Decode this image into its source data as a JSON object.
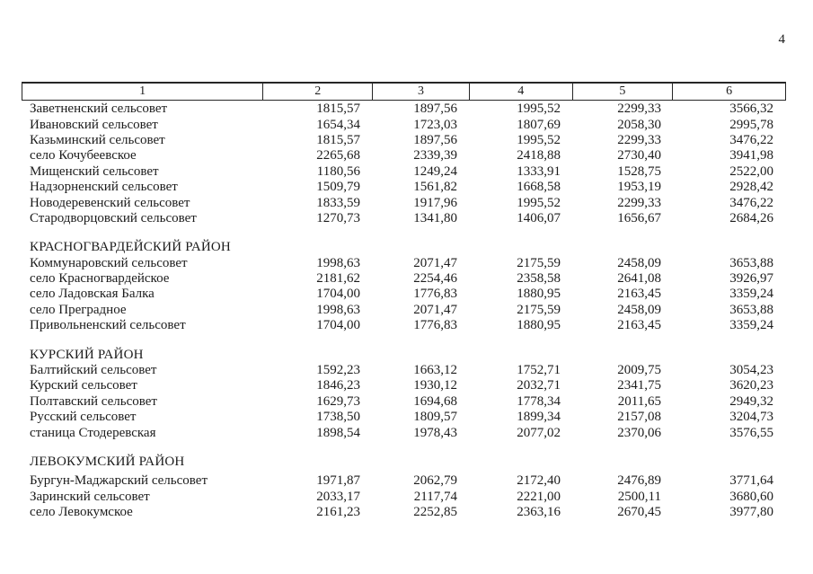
{
  "page": {
    "number": "4"
  },
  "table": {
    "header": [
      "1",
      "2",
      "3",
      "4",
      "5",
      "6"
    ],
    "sections": [
      {
        "title": "",
        "rows": [
          {
            "name": "Заветненский сельсовет",
            "values": [
              "1815,57",
              "1897,56",
              "1995,52",
              "2299,33",
              "3566,32"
            ]
          },
          {
            "name": "Ивановский сельсовет",
            "values": [
              "1654,34",
              "1723,03",
              "1807,69",
              "2058,30",
              "2995,78"
            ]
          },
          {
            "name": "Казьминский сельсовет",
            "values": [
              "1815,57",
              "1897,56",
              "1995,52",
              "2299,33",
              "3476,22"
            ]
          },
          {
            "name": "село Кочубеевское",
            "values": [
              "2265,68",
              "2339,39",
              "2418,88",
              "2730,40",
              "3941,98"
            ]
          },
          {
            "name": "Мищенский сельсовет",
            "values": [
              "1180,56",
              "1249,24",
              "1333,91",
              "1528,75",
              "2522,00"
            ]
          },
          {
            "name": "Надзорненский сельсовет",
            "values": [
              "1509,79",
              "1561,82",
              "1668,58",
              "1953,19",
              "2928,42"
            ]
          },
          {
            "name": "Новодеревенский сельсовет",
            "values": [
              "1833,59",
              "1917,96",
              "1995,52",
              "2299,33",
              "3476,22"
            ]
          },
          {
            "name": "Стародворцовский сельсовет",
            "values": [
              "1270,73",
              "1341,80",
              "1406,07",
              "1656,67",
              "2684,26"
            ]
          }
        ]
      },
      {
        "title": "КРАСНОГВАРДЕЙСКИЙ РАЙОН",
        "rows": [
          {
            "name": "Коммунаровский сельсовет",
            "values": [
              "1998,63",
              "2071,47",
              "2175,59",
              "2458,09",
              "3653,88"
            ]
          },
          {
            "name": "село Красногвардейское",
            "values": [
              "2181,62",
              "2254,46",
              "2358,58",
              "2641,08",
              "3926,97"
            ]
          },
          {
            "name": "село Ладовская Балка",
            "values": [
              "1704,00",
              "1776,83",
              "1880,95",
              "2163,45",
              "3359,24"
            ]
          },
          {
            "name": "село Преградное",
            "values": [
              "1998,63",
              "2071,47",
              "2175,59",
              "2458,09",
              "3653,88"
            ]
          },
          {
            "name": "Привольненский сельсовет",
            "values": [
              "1704,00",
              "1776,83",
              "1880,95",
              "2163,45",
              "3359,24"
            ]
          }
        ]
      },
      {
        "title": "КУРСКИЙ РАЙОН",
        "rows": [
          {
            "name": "Балтийский сельсовет",
            "values": [
              "1592,23",
              "1663,12",
              "1752,71",
              "2009,75",
              "3054,23"
            ]
          },
          {
            "name": "Курский сельсовет",
            "values": [
              "1846,23",
              "1930,12",
              "2032,71",
              "2341,75",
              "3620,23"
            ]
          },
          {
            "name": "Полтавский сельсовет",
            "values": [
              "1629,73",
              "1694,68",
              "1778,34",
              "2011,65",
              "2949,32"
            ]
          },
          {
            "name": "Русский сельсовет",
            "values": [
              "1738,50",
              "1809,57",
              "1899,34",
              "2157,08",
              "3204,73"
            ]
          },
          {
            "name": "станица Стодеревская",
            "values": [
              "1898,54",
              "1978,43",
              "2077,02",
              "2370,06",
              "3576,55"
            ]
          }
        ]
      },
      {
        "title": "ЛЕВОКУМСКИЙ РАЙОН",
        "rows": [
          {
            "name": "Бургун-Маджарский сельсовет",
            "values": [
              "1971,87",
              "2062,79",
              "2172,40",
              "2476,89",
              "3771,64"
            ]
          },
          {
            "name": "Заринский сельсовет",
            "values": [
              "2033,17",
              "2117,74",
              "2221,00",
              "2500,11",
              "3680,60"
            ]
          },
          {
            "name": "село Левокумское",
            "values": [
              "2161,23",
              "2252,85",
              "2363,16",
              "2670,45",
              "3977,80"
            ]
          }
        ]
      }
    ]
  }
}
